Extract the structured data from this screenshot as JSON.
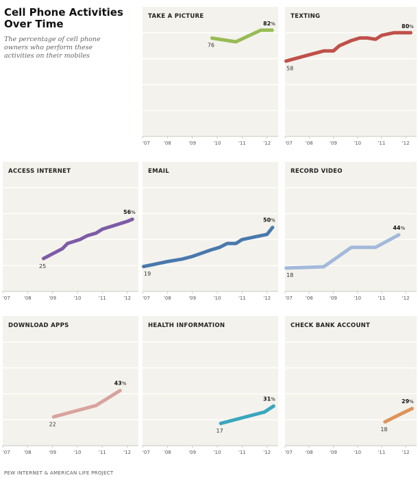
{
  "heading": {
    "title": "Cell Phone Activities\nOver Time",
    "subtitle": "The percentage of cell phone\nowners who perform these\nactivities on their mobiles"
  },
  "footer": "PEW INTERNET & AMERICAN LIFE PROJECT",
  "colors": {
    "panel_bg": "#f3f2ec",
    "grid": "#ffffff",
    "axis": "#c9c8c2",
    "tick_text": "#555555"
  },
  "chart_data": [
    {
      "type": "line",
      "title": "TAKE A PICTURE",
      "color": "#97bb55",
      "xlim": [
        2007,
        2012.45
      ],
      "ylim": [
        0,
        100
      ],
      "x_ticks": [
        2007,
        2008,
        2009,
        2010,
        2011,
        2012
      ],
      "x_tick_labels": [
        "'07",
        "'08",
        "'09",
        "'10",
        "'11",
        "'12"
      ],
      "x": [
        2009.75,
        2010.75,
        2011.75,
        2012.25
      ],
      "y": [
        76,
        73,
        82,
        82
      ],
      "start_label": "76",
      "end_label_value": "82",
      "end_label_unit": "%"
    },
    {
      "type": "line",
      "title": "TEXTING",
      "color": "#c0504a",
      "xlim": [
        2007,
        2012.45
      ],
      "ylim": [
        0,
        100
      ],
      "x_ticks": [
        2007,
        2008,
        2009,
        2010,
        2011,
        2012
      ],
      "x_tick_labels": [
        "'07",
        "'08",
        "'09",
        "'10",
        "'11",
        "'12"
      ],
      "x": [
        2007,
        2008,
        2008.6,
        2009,
        2009.25,
        2009.75,
        2010.1,
        2010.4,
        2010.75,
        2011,
        2011.5,
        2012,
        2012.25
      ],
      "y": [
        58,
        63,
        66,
        66,
        70,
        74,
        76,
        76,
        75,
        78,
        80,
        80,
        80
      ],
      "start_label": "58",
      "end_label_value": "80",
      "end_label_unit": "%"
    },
    {
      "type": "line",
      "title": "ACCESS INTERNET",
      "color": "#7d5ba6",
      "xlim": [
        2007,
        2012.45
      ],
      "ylim": [
        0,
        100
      ],
      "x_ticks": [
        2007,
        2008,
        2009,
        2010,
        2011,
        2012
      ],
      "x_tick_labels": [
        "'07",
        "'08",
        "'09",
        "'10",
        "'11",
        "'12"
      ],
      "x": [
        2008.6,
        2009,
        2009.4,
        2009.6,
        2010.1,
        2010.4,
        2010.75,
        2011,
        2011.5,
        2012,
        2012.25
      ],
      "y": [
        25,
        29,
        33,
        37,
        40,
        43,
        45,
        48,
        51,
        54,
        56
      ],
      "start_label": "25",
      "end_label_value": "56",
      "end_label_unit": "%"
    },
    {
      "type": "line",
      "title": "EMAIL",
      "color": "#4a78ad",
      "xlim": [
        2007,
        2012.45
      ],
      "ylim": [
        0,
        100
      ],
      "x_ticks": [
        2007,
        2008,
        2009,
        2010,
        2011,
        2012
      ],
      "x_tick_labels": [
        "'07",
        "'08",
        "'09",
        "'10",
        "'11",
        "'12"
      ],
      "x": [
        2007,
        2008,
        2008.6,
        2009,
        2009.3,
        2009.75,
        2010.1,
        2010.4,
        2010.75,
        2011,
        2011.5,
        2012,
        2012.25
      ],
      "y": [
        19,
        23,
        25,
        27,
        29,
        32,
        34,
        37,
        37,
        40,
        42,
        44,
        50
      ],
      "start_label": "19",
      "end_label_value": "50",
      "end_label_unit": "%"
    },
    {
      "type": "line",
      "title": "RECORD VIDEO",
      "color": "#a3b9db",
      "xlim": [
        2007,
        2012.45
      ],
      "ylim": [
        0,
        100
      ],
      "x_ticks": [
        2007,
        2008,
        2009,
        2010,
        2011,
        2012
      ],
      "x_tick_labels": [
        "'07",
        "'08",
        "'09",
        "'10",
        "'11",
        "'12"
      ],
      "x": [
        2007,
        2008.6,
        2009.75,
        2010.75,
        2011.75
      ],
      "y": [
        18,
        19,
        34,
        34,
        44
      ],
      "start_label": "18",
      "end_label_value": "44",
      "end_label_unit": "%"
    },
    {
      "type": "line",
      "title": "DOWNLOAD APPS",
      "color": "#d9a39d",
      "xlim": [
        2007,
        2012.45
      ],
      "ylim": [
        0,
        100
      ],
      "x_ticks": [
        2007,
        2008,
        2009,
        2010,
        2011,
        2012
      ],
      "x_tick_labels": [
        "'07",
        "'08",
        "'09",
        "'10",
        "'11",
        "'12"
      ],
      "x": [
        2009,
        2010.75,
        2011.75
      ],
      "y": [
        22,
        31,
        43
      ],
      "start_label": "22",
      "end_label_value": "43",
      "end_label_unit": "%"
    },
    {
      "type": "line",
      "title": "HEALTH INFORMATION",
      "color": "#3aa6be",
      "xlim": [
        2007,
        2012.45
      ],
      "ylim": [
        0,
        100
      ],
      "x_ticks": [
        2007,
        2008,
        2009,
        2010,
        2011,
        2012
      ],
      "x_tick_labels": [
        "'07",
        "'08",
        "'09",
        "'10",
        "'11",
        "'12"
      ],
      "x": [
        2010.1,
        2011.9,
        2012.3
      ],
      "y": [
        17,
        26,
        31
      ],
      "start_label": "17",
      "end_label_value": "31",
      "end_label_unit": "%"
    },
    {
      "type": "line",
      "title": "CHECK BANK ACCOUNT",
      "color": "#e0935b",
      "xlim": [
        2007,
        2012.45
      ],
      "ylim": [
        0,
        100
      ],
      "x_ticks": [
        2007,
        2008,
        2009,
        2010,
        2011,
        2012
      ],
      "x_tick_labels": [
        "'07",
        "'08",
        "'09",
        "'10",
        "'11",
        "'12"
      ],
      "x": [
        2011.1,
        2011.75,
        2012.3
      ],
      "y": [
        18,
        24,
        29
      ],
      "start_label": "18",
      "end_label_value": "29",
      "end_label_unit": "%"
    }
  ]
}
